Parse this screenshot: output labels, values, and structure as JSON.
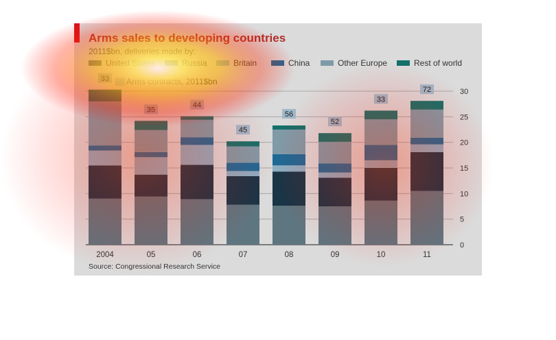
{
  "title": "Arms sales to developing countries",
  "subtitle": "2011$bn, deliveries made by:",
  "source": "Source: Congressional Research Service",
  "contracts_label": "Arms contracts, 2011$bn",
  "colors": {
    "united_states": "#5e7680",
    "russia": "#193546",
    "britain": "#8dafc3",
    "china": "#1d6a96",
    "other_europe": "#7f9ba7",
    "rest_of_world": "#14706a",
    "accent_red": "#d8141e",
    "panel": "#dbdbdb"
  },
  "chart_data": {
    "type": "bar",
    "stacked": true,
    "categories": [
      "2004",
      "05",
      "06",
      "07",
      "08",
      "09",
      "10",
      "11"
    ],
    "series": [
      {
        "name": "United States",
        "values": [
          9.0,
          9.4,
          8.9,
          7.8,
          7.6,
          7.5,
          8.6,
          10.5
        ]
      },
      {
        "name": "Russia",
        "values": [
          6.5,
          4.3,
          6.7,
          5.6,
          6.7,
          5.6,
          6.4,
          7.6
        ]
      },
      {
        "name": "Britain",
        "values": [
          2.9,
          3.4,
          3.9,
          1.0,
          1.2,
          1.0,
          1.5,
          1.5
        ]
      },
      {
        "name": "China",
        "values": [
          1.0,
          1.0,
          1.5,
          1.6,
          2.2,
          1.8,
          3.0,
          1.3
        ]
      },
      {
        "name": "Other Europe",
        "values": [
          8.6,
          4.3,
          3.4,
          3.2,
          4.8,
          4.2,
          5.0,
          5.5
        ]
      },
      {
        "name": "Rest of world",
        "values": [
          2.3,
          1.8,
          0.7,
          1.0,
          0.8,
          1.7,
          1.7,
          1.7
        ]
      }
    ],
    "contracts": [
      33,
      35,
      44,
      45,
      56,
      52,
      33,
      72
    ],
    "ylim": [
      0,
      30
    ],
    "yticks": [
      0,
      5,
      10,
      15,
      20,
      25,
      30
    ],
    "axis_side": "right",
    "grid": true,
    "legend_position": "top"
  }
}
